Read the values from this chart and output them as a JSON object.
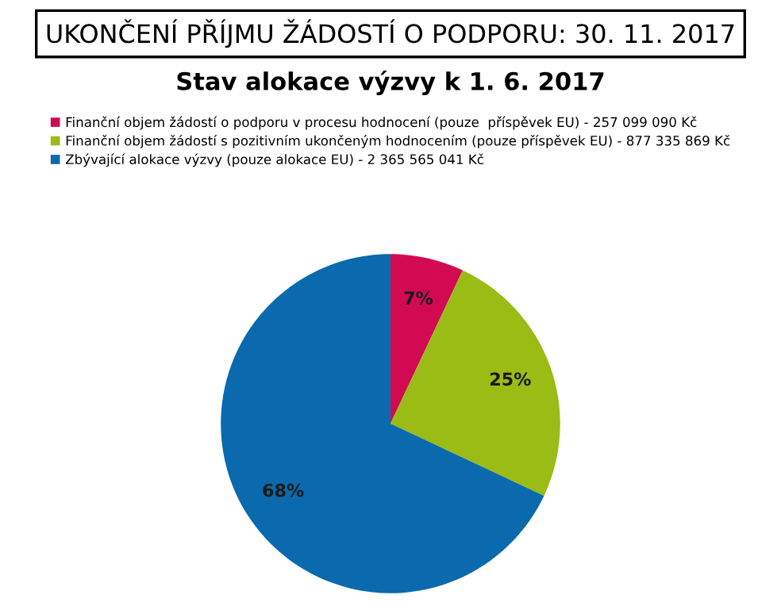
{
  "chart_data": {
    "type": "pie",
    "title": "UKONČENÍ PŘÍJMU ŽÁDOSTÍ O PODPORU: 30. 11. 2017",
    "subtitle": "Stav alokace výzvy k 1. 6. 2017",
    "categories": [
      "Finanční objem žádostí o podporu v procesu hodnocení (pouze  příspěvek EU) - 257 099 090 Kč",
      "Finanční objem žádostí s pozitivním ukončeným hodnocením (pouze příspěvek EU) - 877 335 869 Kč",
      "Zbývající alokace výzvy (pouze alokace EU) - 2 365 565 041 Kč"
    ],
    "values": [
      7,
      25,
      68
    ],
    "value_labels": [
      "7%",
      "25%",
      "68%"
    ],
    "colors": [
      "#d10a52",
      "#9bbb15",
      "#0b6aad"
    ],
    "legend": "top"
  }
}
